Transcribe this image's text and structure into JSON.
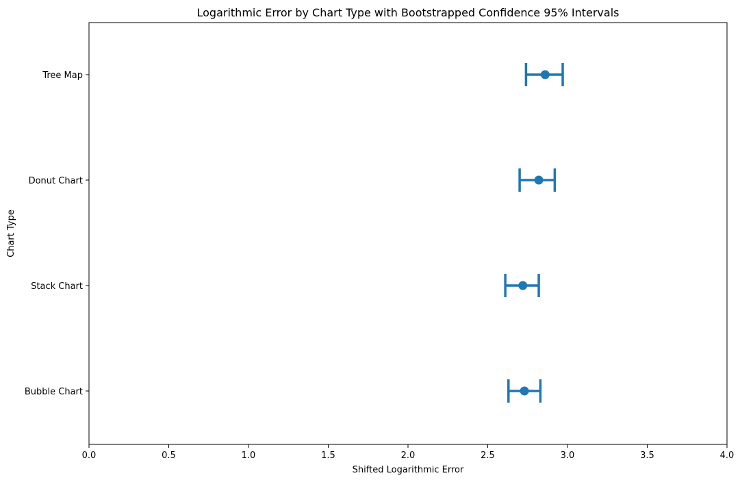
{
  "chart_data": {
    "type": "scatter",
    "title": "Logarithmic Error by Chart Type with Bootstrapped Confidence 95% Intervals",
    "xlabel": "Shifted Logarithmic Error",
    "ylabel": "Chart Type",
    "xlim": [
      0.0,
      4.0
    ],
    "xticks": [
      "0.0",
      "0.5",
      "1.0",
      "1.5",
      "2.0",
      "2.5",
      "3.0",
      "3.5",
      "4.0"
    ],
    "categories": [
      "Tree Map",
      "Donut Chart",
      "Stack Chart",
      "Bubble Chart"
    ],
    "values": [
      2.86,
      2.82,
      2.72,
      2.73
    ],
    "ci_low": [
      2.74,
      2.7,
      2.61,
      2.63
    ],
    "ci_high": [
      2.97,
      2.92,
      2.82,
      2.83
    ],
    "color": "#1f77b4",
    "grid": false
  }
}
